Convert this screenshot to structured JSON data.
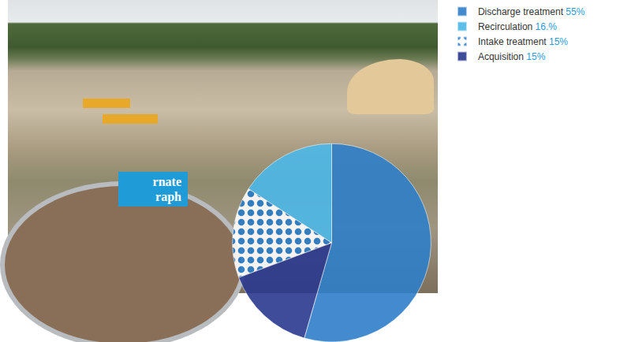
{
  "chart_data": {
    "type": "pie",
    "categories": [
      "Discharge treatment",
      "Recirculation",
      "Intake treatment",
      "Acquisition"
    ],
    "values": [
      55,
      16,
      15,
      15
    ],
    "value_labels": [
      "55%",
      "16.%",
      "15%",
      "15%"
    ],
    "colors": [
      "#2f7fc9",
      "#4cb8e8",
      "#2a7cc6",
      "#2b3990"
    ],
    "legend": "top right",
    "data_labels": false,
    "annotations": [
      "rnate",
      "raph"
    ]
  }
}
